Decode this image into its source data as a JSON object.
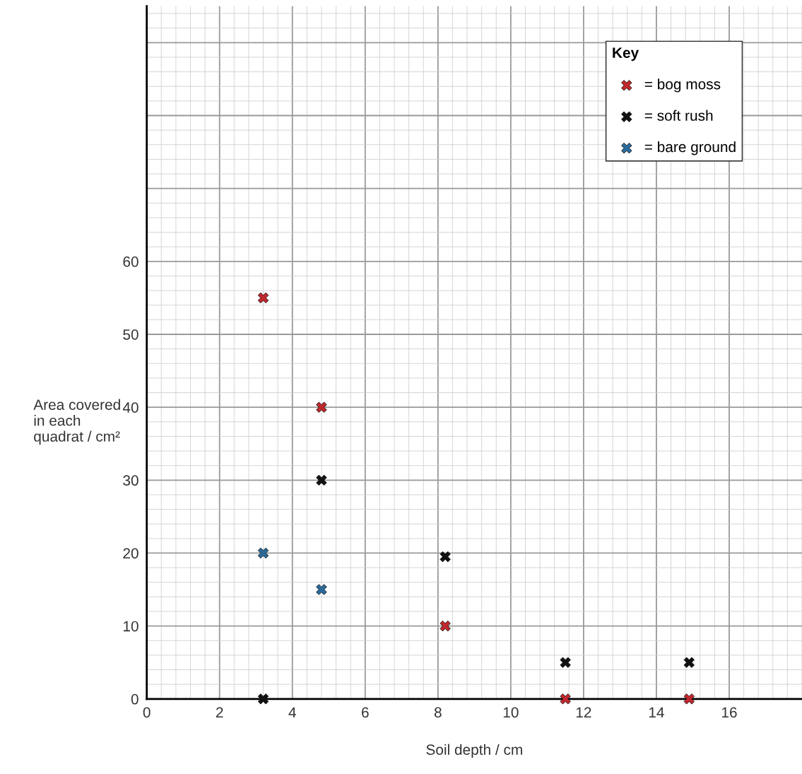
{
  "chart_data": {
    "type": "scatter",
    "xlabel": "Soil depth / cm",
    "ylabel": "Area covered\nin each\nquadrat / cm²",
    "legend_title": "Key",
    "series": [
      {
        "name": "= bog moss",
        "color": "#c0282d",
        "x": [
          3.2,
          4.8,
          8.2,
          11.5,
          14.9
        ],
        "values": [
          55,
          40,
          10,
          0,
          0
        ]
      },
      {
        "name": "= soft rush",
        "color": "#111111",
        "x": [
          3.2,
          4.8,
          8.2,
          11.5,
          14.9
        ],
        "values": [
          0,
          30,
          19.5,
          5,
          5
        ]
      },
      {
        "name": "= bare ground",
        "color": "#2a6a9a",
        "x": [
          3.2,
          4.8
        ],
        "values": [
          20,
          15
        ]
      }
    ],
    "xlim": [
      0,
      18
    ],
    "ylim": [
      0,
      95
    ],
    "xticks": [
      0,
      2,
      4,
      6,
      8,
      10,
      12,
      14,
      16
    ],
    "yticks": [
      0,
      10,
      20,
      30,
      40,
      50,
      60,
      {
        "value": 70,
        "label": null
      },
      {
        "value": 80,
        "label": null
      },
      {
        "value": 90,
        "label": null
      }
    ],
    "grid": true,
    "legend": "top right",
    "marker": "cross"
  }
}
